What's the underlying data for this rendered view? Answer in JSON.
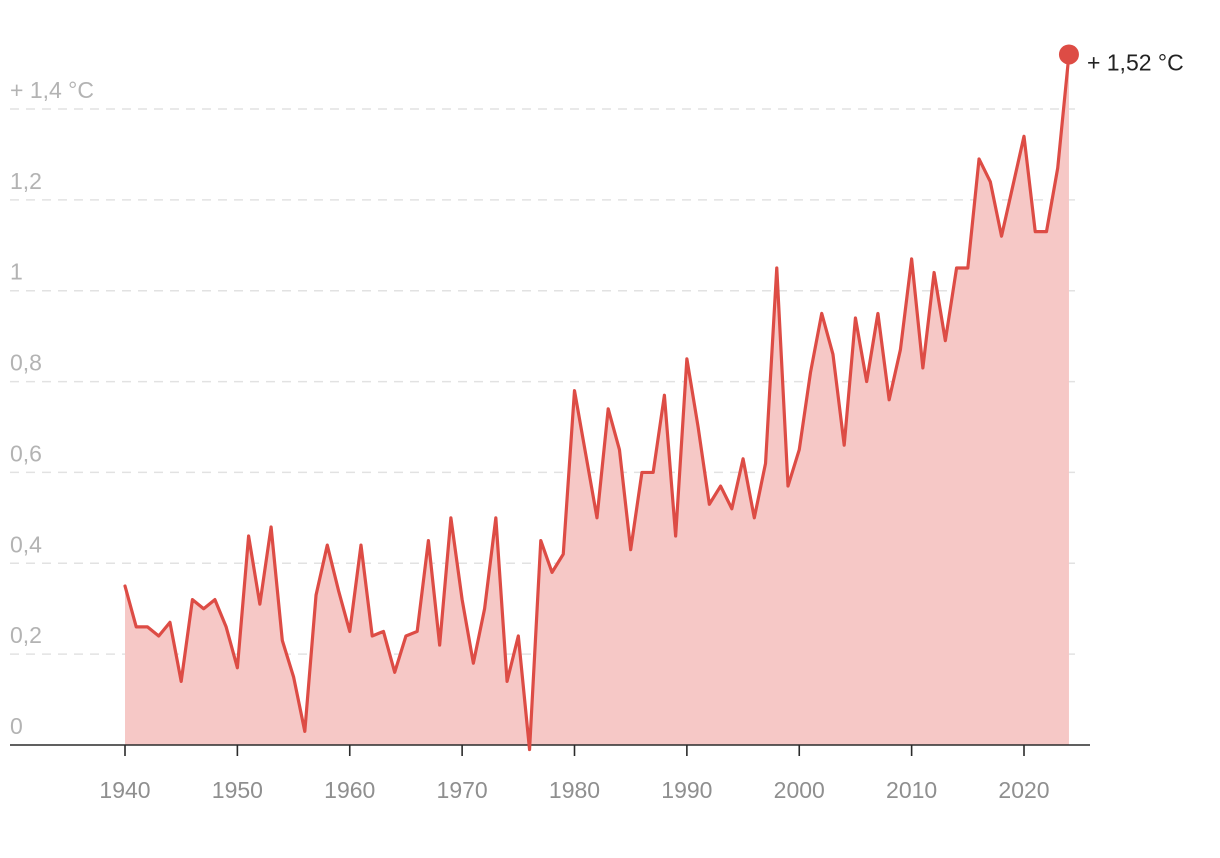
{
  "colors": {
    "line": "#dd4c45",
    "area": "#f6c8c6",
    "grid": "#e2e2e2",
    "axis": "#2b2b2b",
    "ytick": "#b3b3b3",
    "xtick": "#8f8f8f"
  },
  "end_label": "+ 1,52 °C",
  "chart_data": {
    "type": "area",
    "title": "",
    "xlabel": "",
    "ylabel": "",
    "xlim": [
      1930,
      2026
    ],
    "ylim": [
      0,
      1.6
    ],
    "grid": true,
    "y_ticks": [
      {
        "value": 0,
        "label": "0"
      },
      {
        "value": 0.2,
        "label": "0,2"
      },
      {
        "value": 0.4,
        "label": "0,4"
      },
      {
        "value": 0.6,
        "label": "0,6"
      },
      {
        "value": 0.8,
        "label": "0,8"
      },
      {
        "value": 1.0,
        "label": "1"
      },
      {
        "value": 1.2,
        "label": "1,2"
      },
      {
        "value": 1.4,
        "label": "+ 1,4 °C"
      }
    ],
    "x_ticks": [
      {
        "value": 1940,
        "label": "1940"
      },
      {
        "value": 1950,
        "label": "1950"
      },
      {
        "value": 1960,
        "label": "1960"
      },
      {
        "value": 1970,
        "label": "1970"
      },
      {
        "value": 1980,
        "label": "1980"
      },
      {
        "value": 1990,
        "label": "1990"
      },
      {
        "value": 2000,
        "label": "2000"
      },
      {
        "value": 2010,
        "label": "2010"
      },
      {
        "value": 2020,
        "label": "2020"
      }
    ],
    "series": [
      {
        "x": [
          1940,
          1941,
          1942,
          1943,
          1944,
          1945,
          1946,
          1947,
          1948,
          1949,
          1950,
          1951,
          1952,
          1953,
          1954,
          1955,
          1956,
          1957,
          1958,
          1959,
          1960,
          1961,
          1962,
          1963,
          1964,
          1965,
          1966,
          1967,
          1968,
          1969,
          1970,
          1971,
          1972,
          1973,
          1974,
          1975,
          1976,
          1977,
          1978,
          1979,
          1980,
          1981,
          1982,
          1983,
          1984,
          1985,
          1986,
          1987,
          1988,
          1989,
          1990,
          1991,
          1992,
          1993,
          1994,
          1995,
          1996,
          1997,
          1998,
          1999,
          2000,
          2001,
          2002,
          2003,
          2004,
          2005,
          2006,
          2007,
          2008,
          2009,
          2010,
          2011,
          2012,
          2013,
          2014,
          2015,
          2016,
          2017,
          2018,
          2019,
          2020,
          2021,
          2022,
          2023,
          2024
        ],
        "values": [
          0.35,
          0.26,
          0.26,
          0.24,
          0.27,
          0.14,
          0.32,
          0.3,
          0.32,
          0.26,
          0.17,
          0.46,
          0.31,
          0.48,
          0.23,
          0.15,
          0.03,
          0.33,
          0.44,
          0.34,
          0.25,
          0.44,
          0.24,
          0.25,
          0.16,
          0.24,
          0.25,
          0.45,
          0.22,
          0.5,
          0.32,
          0.18,
          0.3,
          0.5,
          0.14,
          0.24,
          -0.01,
          0.45,
          0.38,
          0.42,
          0.78,
          0.64,
          0.5,
          0.74,
          0.65,
          0.43,
          0.6,
          0.6,
          0.77,
          0.46,
          0.85,
          0.7,
          0.53,
          0.57,
          0.52,
          0.63,
          0.5,
          0.62,
          1.05,
          0.57,
          0.65,
          0.82,
          0.95,
          0.86,
          0.66,
          0.94,
          0.8,
          0.95,
          0.76,
          0.87,
          1.07,
          0.83,
          1.04,
          0.89,
          1.05,
          1.05,
          1.29,
          1.24,
          1.12,
          1.23,
          1.34,
          1.13,
          1.13,
          1.27,
          1.52
        ]
      }
    ],
    "annotation": {
      "x": 2024,
      "y": 1.52,
      "label": "+ 1,52 °C"
    }
  }
}
